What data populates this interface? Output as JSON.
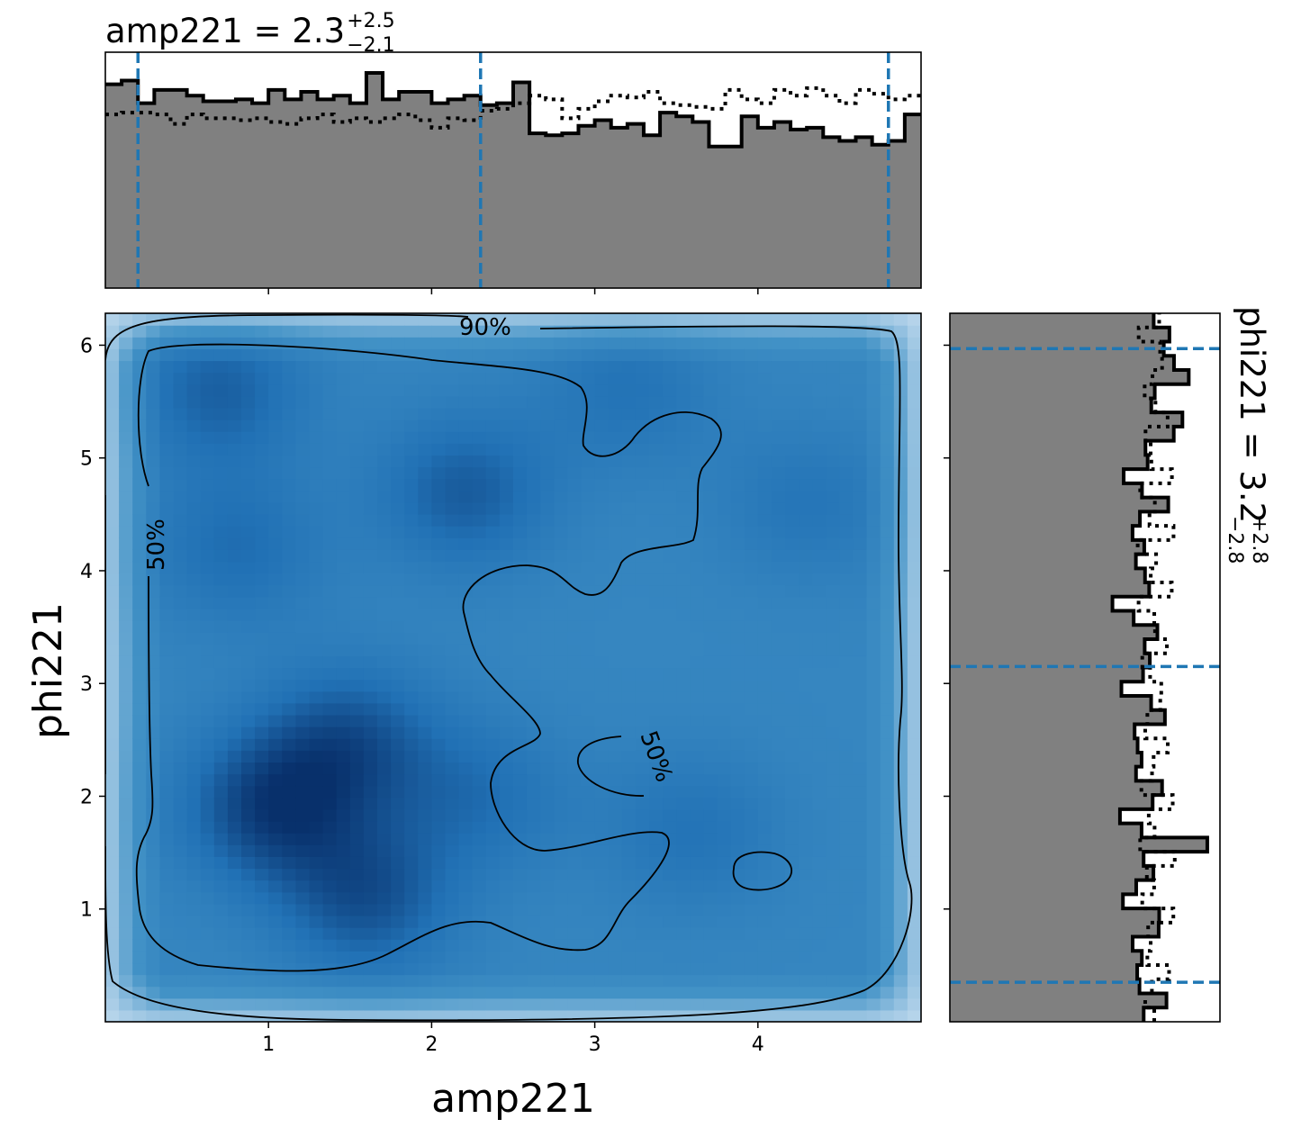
{
  "chart_data": [
    {
      "type": "histogram",
      "panel": "top",
      "param": "amp221",
      "title_main": "amp221 = 2.3",
      "title_sup": "+2.5",
      "title_sub": "−2.1",
      "xlim": [
        0,
        5
      ],
      "ylim": [
        0,
        1.25
      ],
      "bins": [
        0.0,
        0.1,
        0.2,
        0.3,
        0.4,
        0.5,
        0.6,
        0.7,
        0.8,
        0.9,
        1.0,
        1.1,
        1.2,
        1.3,
        1.4,
        1.5,
        1.6,
        1.7,
        1.8,
        1.9,
        2.0,
        2.1,
        2.2,
        2.3,
        2.4,
        2.5,
        2.6,
        2.7,
        2.8,
        2.9,
        3.0,
        3.1,
        3.2,
        3.3,
        3.4,
        3.5,
        3.6,
        3.7,
        3.8,
        3.9,
        4.0,
        4.1,
        4.2,
        4.3,
        4.4,
        4.5,
        4.6,
        4.7,
        4.8,
        4.9,
        5.0
      ],
      "posterior": [
        1.08,
        1.1,
        0.98,
        1.05,
        1.05,
        1.02,
        0.99,
        0.99,
        1.0,
        0.98,
        1.05,
        1.0,
        1.04,
        1.0,
        1.02,
        0.98,
        1.14,
        1.0,
        1.04,
        1.04,
        0.98,
        1.0,
        1.02,
        0.97,
        0.98,
        1.09,
        0.82,
        0.81,
        0.82,
        0.86,
        0.89,
        0.85,
        0.87,
        0.81,
        0.93,
        0.91,
        0.88,
        0.75,
        0.75,
        0.91,
        0.85,
        0.88,
        0.84,
        0.85,
        0.8,
        0.78,
        0.8,
        0.76,
        0.78,
        0.92
      ],
      "prior": [
        0.92,
        0.93,
        0.93,
        0.92,
        0.87,
        0.92,
        0.9,
        0.9,
        0.89,
        0.9,
        0.88,
        0.87,
        0.9,
        0.92,
        0.88,
        0.9,
        0.88,
        0.9,
        0.92,
        0.89,
        0.85,
        0.9,
        0.89,
        0.94,
        0.95,
        0.98,
        1.02,
        1.0,
        0.9,
        0.95,
        0.99,
        1.02,
        1.01,
        1.04,
        0.98,
        0.97,
        0.96,
        0.95,
        1.05,
        1.0,
        0.98,
        1.05,
        1.02,
        1.06,
        1.02,
        0.98,
        1.05,
        1.03,
        1.0,
        1.02
      ],
      "quantile_lines": [
        0.2,
        2.3,
        4.8
      ]
    },
    {
      "type": "heatmap",
      "panel": "main",
      "xlabel": "amp221",
      "ylabel": "phi221",
      "xlim": [
        0,
        5
      ],
      "ylim": [
        0,
        6.283
      ],
      "xticks": [
        "1",
        "2",
        "3",
        "4"
      ],
      "xtick_values": [
        1,
        2,
        3,
        4
      ],
      "yticks": [
        "1",
        "2",
        "3",
        "4",
        "5",
        "6"
      ],
      "ytick_values": [
        1,
        2,
        3,
        4,
        5,
        6
      ],
      "density_peaks": [
        {
          "x": 1.0,
          "y": 1.9,
          "w": 1.0
        },
        {
          "x": 1.5,
          "y": 2.5,
          "w": 0.8
        },
        {
          "x": 1.6,
          "y": 1.1,
          "w": 0.85
        },
        {
          "x": 0.7,
          "y": 5.6,
          "w": 0.7
        },
        {
          "x": 2.2,
          "y": 4.7,
          "w": 0.75
        },
        {
          "x": 0.8,
          "y": 4.2,
          "w": 0.55
        },
        {
          "x": 2.3,
          "y": 2.0,
          "w": 0.5
        },
        {
          "x": 3.6,
          "y": 1.7,
          "w": 0.45
        },
        {
          "x": 4.3,
          "y": 4.6,
          "w": 0.4
        },
        {
          "x": 3.2,
          "y": 5.6,
          "w": 0.45
        }
      ],
      "contour_labels": [
        "90%",
        "50%",
        "50%",
        "90%"
      ]
    },
    {
      "type": "histogram",
      "panel": "right",
      "orientation": "horizontal",
      "param": "phi221",
      "title_main": "phi221 = 3.2",
      "title_sup": "+2.8",
      "title_sub": "−2.8",
      "ylim": [
        0,
        6.283
      ],
      "quantile_lines": [
        0.35,
        3.15,
        5.97
      ]
    }
  ],
  "colors": {
    "fill": "#808080",
    "quantile": "#1f77b4",
    "density_low": "#deebf7",
    "density_high": "#08306b"
  }
}
